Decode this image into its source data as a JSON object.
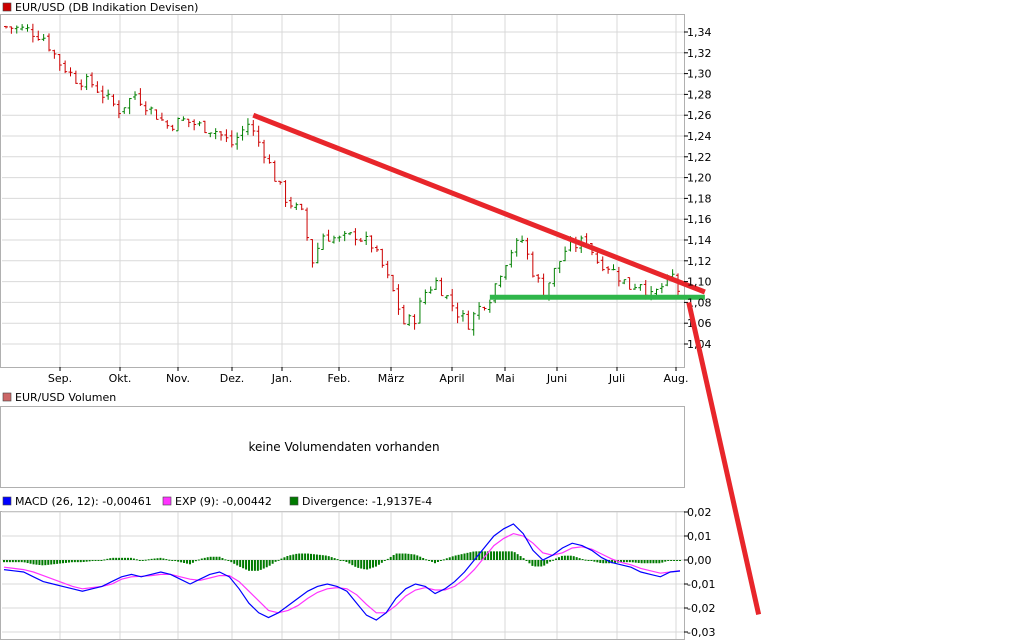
{
  "colors": {
    "price_up": "#008000",
    "price_down": "#cc0000",
    "trend_line": "#e8262b",
    "support_line": "#2fb64a",
    "grid": "#d9d9d9",
    "macd": "#0000ff",
    "exp": "#ff33ff",
    "divergence": "#007a00",
    "panel_border": "#b0b0b0"
  },
  "price_panel": {
    "legend": "EUR/USD (DB Indikation Devisen)",
    "legend_color": "#cc0000"
  },
  "volume_panel": {
    "legend": "EUR/USD Volumen",
    "legend_color": "#cc6666",
    "message": "keine Volumendaten vorhanden"
  },
  "macd_panel": {
    "legends": [
      {
        "text": "MACD (26, 12): -0,00461",
        "color": "#0000ff"
      },
      {
        "text": "EXP (9): -0,00442",
        "color": "#ff33ff"
      },
      {
        "text": "Divergence: -1,9137E-4",
        "color": "#007a00"
      }
    ]
  },
  "chart_data": [
    {
      "type": "ohlc",
      "series_name": "EUR/USD (DB Indikation Devisen)",
      "x_tick_labels": [
        "Sep.",
        "Okt.",
        "Nov.",
        "Dez.",
        "Jan.",
        "Feb.",
        "März",
        "April",
        "Mai",
        "Juni",
        "Juli",
        "Aug."
      ],
      "y_tick_labels": [
        "1,34",
        "1,32",
        "1,30",
        "1,28",
        "1,26",
        "1,24",
        "1,22",
        "1,20",
        "1,18",
        "1,16",
        "1,14",
        "1,12",
        "1,10",
        "1,08",
        "1,06",
        "1,04"
      ],
      "ylim": [
        1.02,
        1.36
      ],
      "grid": true,
      "close_path": [
        [
          0,
          1.345
        ],
        [
          4,
          1.342
        ],
        [
          7,
          1.335
        ],
        [
          10,
          1.31
        ],
        [
          13,
          1.295
        ],
        [
          16,
          1.29
        ],
        [
          19,
          1.275
        ],
        [
          21,
          1.265
        ],
        [
          24,
          1.28
        ],
        [
          27,
          1.265
        ],
        [
          30,
          1.25
        ],
        [
          33,
          1.255
        ],
        [
          36,
          1.25
        ],
        [
          39,
          1.245
        ],
        [
          42,
          1.232
        ],
        [
          45,
          1.252
        ],
        [
          48,
          1.225
        ],
        [
          50,
          1.2
        ],
        [
          52,
          1.18
        ],
        [
          55,
          1.165
        ],
        [
          57,
          1.12
        ],
        [
          59,
          1.145
        ],
        [
          62,
          1.14
        ],
        [
          65,
          1.145
        ],
        [
          68,
          1.135
        ],
        [
          70,
          1.115
        ],
        [
          72,
          1.09
        ],
        [
          74,
          1.06
        ],
        [
          76,
          1.065
        ],
        [
          78,
          1.09
        ],
        [
          80,
          1.1
        ],
        [
          82,
          1.085
        ],
        [
          84,
          1.07
        ],
        [
          86,
          1.06
        ],
        [
          88,
          1.075
        ],
        [
          90,
          1.085
        ],
        [
          92,
          1.11
        ],
        [
          94,
          1.13
        ],
        [
          96,
          1.14
        ],
        [
          98,
          1.11
        ],
        [
          100,
          1.09
        ],
        [
          102,
          1.11
        ],
        [
          104,
          1.13
        ],
        [
          106,
          1.135
        ],
        [
          108,
          1.14
        ],
        [
          110,
          1.12
        ],
        [
          112,
          1.115
        ],
        [
          114,
          1.105
        ],
        [
          116,
          1.095
        ],
        [
          118,
          1.1
        ],
        [
          120,
          1.085
        ],
        [
          122,
          1.095
        ],
        [
          124,
          1.105
        ],
        [
          125,
          1.092
        ]
      ],
      "annotations": [
        {
          "type": "trend_line",
          "from": [
            46,
            1.26
          ],
          "to": [
            130,
            1.09
          ],
          "color": "red"
        },
        {
          "type": "support_line",
          "from": [
            90,
            1.085
          ],
          "to": [
            130,
            1.085
          ],
          "color": "green"
        },
        {
          "type": "projection_line",
          "from": [
            127,
            1.08
          ],
          "to": [
            140,
            0.78
          ],
          "color": "red"
        }
      ]
    },
    {
      "type": "line",
      "title": "MACD",
      "y_tick_labels": [
        "0,02",
        "0,01",
        "0,00",
        "-0,01",
        "-0,02",
        "-0,03"
      ],
      "ylim": [
        -0.03,
        0.02
      ],
      "series": [
        {
          "name": "MACD (26, 12)",
          "color": "#0000ff",
          "values": [
            -0.004,
            -0.0045,
            -0.005,
            -0.007,
            -0.009,
            -0.01,
            -0.011,
            -0.012,
            -0.013,
            -0.012,
            -0.011,
            -0.009,
            -0.007,
            -0.006,
            -0.007,
            -0.006,
            -0.005,
            -0.006,
            -0.008,
            -0.01,
            -0.008,
            -0.006,
            -0.005,
            -0.007,
            -0.012,
            -0.018,
            -0.022,
            -0.024,
            -0.022,
            -0.019,
            -0.016,
            -0.013,
            -0.011,
            -0.01,
            -0.011,
            -0.013,
            -0.018,
            -0.023,
            -0.025,
            -0.022,
            -0.016,
            -0.012,
            -0.01,
            -0.011,
            -0.014,
            -0.012,
            -0.009,
            -0.005,
            0.0,
            0.005,
            0.01,
            0.013,
            0.015,
            0.011,
            0.004,
            0.0,
            0.002,
            0.005,
            0.007,
            0.006,
            0.004,
            0.001,
            -0.001,
            -0.002,
            -0.003,
            -0.005,
            -0.006,
            -0.007,
            -0.005,
            -0.0046
          ]
        },
        {
          "name": "EXP (9)",
          "color": "#ff33ff",
          "values": [
            -0.003,
            -0.0035,
            -0.004,
            -0.005,
            -0.0065,
            -0.008,
            -0.0095,
            -0.011,
            -0.012,
            -0.0115,
            -0.011,
            -0.01,
            -0.008,
            -0.007,
            -0.0068,
            -0.0065,
            -0.006,
            -0.006,
            -0.007,
            -0.008,
            -0.0085,
            -0.0075,
            -0.0065,
            -0.0065,
            -0.009,
            -0.013,
            -0.017,
            -0.021,
            -0.022,
            -0.021,
            -0.019,
            -0.016,
            -0.0135,
            -0.012,
            -0.0115,
            -0.012,
            -0.0145,
            -0.0185,
            -0.022,
            -0.022,
            -0.019,
            -0.015,
            -0.0125,
            -0.0115,
            -0.0125,
            -0.0125,
            -0.011,
            -0.008,
            -0.004,
            0.001,
            0.006,
            0.009,
            0.011,
            0.01,
            0.007,
            0.003,
            0.002,
            0.003,
            0.005,
            0.0055,
            0.0045,
            0.0025,
            0.0005,
            -0.001,
            -0.002,
            -0.0035,
            -0.0045,
            -0.0055,
            -0.005,
            -0.0044
          ]
        }
      ]
    }
  ]
}
